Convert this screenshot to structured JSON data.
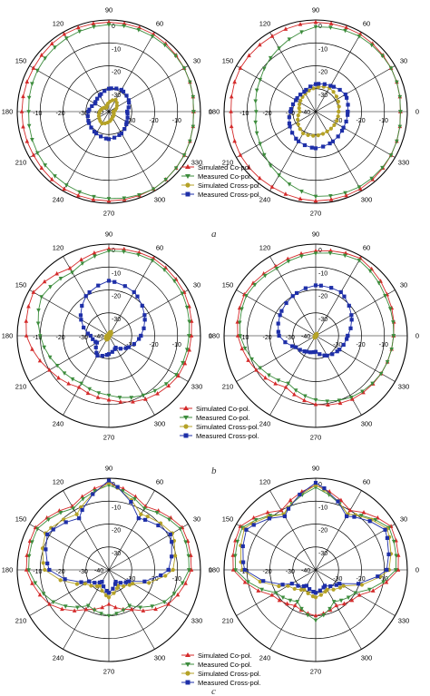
{
  "figure": {
    "panel_labels": [
      "a",
      "b",
      "c"
    ],
    "colors": {
      "sim_co": "#d42a2a",
      "meas_co": "#3c8c3c",
      "sim_cross": "#b5a227",
      "meas_cross": "#1e2fa8",
      "grid": "#000000"
    },
    "legend_entries": [
      {
        "label": "Simulated Co-pol.",
        "marker": "triangle-up",
        "color": "#d42a2a"
      },
      {
        "label": "Measured Co-pol.",
        "marker": "triangle-down",
        "color": "#3c8c3c"
      },
      {
        "label": "Simulated Cross-pol.",
        "marker": "circle",
        "color": "#b5a227"
      },
      {
        "label": "Measured Cross-pol.",
        "marker": "square",
        "color": "#1e2fa8"
      }
    ]
  },
  "chart_data": [
    {
      "type": "polar",
      "panel": "a",
      "position": "left",
      "angle_labels": [
        "90",
        "60",
        "30",
        "0",
        "330",
        "300",
        "270",
        "240",
        "210",
        "180",
        "150",
        "120"
      ],
      "radial_labels": [
        "0",
        "-10",
        "-20",
        "-30",
        "-40",
        "-30",
        "-20",
        "-10"
      ],
      "rlim": [
        -40,
        0
      ],
      "series": [
        {
          "name": "Simulated Co-pol.",
          "angles_deg": [
            0,
            30,
            60,
            90,
            120,
            150,
            180,
            210,
            240,
            270,
            300,
            330,
            360
          ],
          "values_db": [
            -3,
            -2,
            -1,
            -1,
            -1,
            -2,
            -2,
            -2,
            -1,
            -1,
            -1,
            -2,
            -3
          ]
        },
        {
          "name": "Measured Co-pol.",
          "angles_deg": [
            0,
            30,
            60,
            90,
            120,
            150,
            180,
            210,
            240,
            270,
            300,
            330,
            360
          ],
          "values_db": [
            -3,
            -2,
            -2,
            -2,
            -3,
            -4,
            -5,
            -4,
            -3,
            -2,
            -1,
            -2,
            -3
          ]
        },
        {
          "name": "Simulated Cross-pol.",
          "angles_deg": [
            0,
            60,
            120,
            180,
            240,
            300,
            360
          ],
          "values_db": [
            -38,
            -34,
            -38,
            -36,
            -34,
            -37,
            -38
          ]
        },
        {
          "name": "Measured Cross-pol.",
          "angles_deg": [
            0,
            30,
            60,
            90,
            120,
            150,
            180,
            210,
            240,
            270,
            300,
            330,
            360
          ],
          "values_db": [
            -32,
            -30,
            -29,
            -30,
            -32,
            -33,
            -31,
            -30,
            -29,
            -28,
            -29,
            -31,
            -32
          ]
        }
      ]
    },
    {
      "type": "polar",
      "panel": "a",
      "position": "right",
      "angle_labels": [
        "90",
        "60",
        "30",
        "0",
        "330",
        "300",
        "270",
        "240",
        "210",
        "180",
        "150",
        "120"
      ],
      "radial_labels": [
        "0",
        "-10",
        "-20",
        "-30",
        "-40",
        "-30",
        "-20",
        "-10"
      ],
      "rlim": [
        -40,
        0
      ],
      "series": [
        {
          "name": "Simulated Co-pol.",
          "angles_deg": [
            0,
            30,
            60,
            90,
            120,
            150,
            180,
            210,
            240,
            270,
            300,
            330,
            360
          ],
          "values_db": [
            -3,
            -2,
            -1,
            -1,
            -2,
            -2,
            -3,
            -2,
            -2,
            -1,
            -1,
            -2,
            -3
          ]
        },
        {
          "name": "Measured Co-pol.",
          "angles_deg": [
            0,
            30,
            60,
            90,
            120,
            150,
            180,
            210,
            240,
            270,
            300,
            330,
            360
          ],
          "values_db": [
            -3,
            -2,
            -2,
            -3,
            -8,
            -12,
            -14,
            -12,
            -8,
            -3,
            -2,
            -2,
            -3
          ]
        },
        {
          "name": "Simulated Cross-pol.",
          "angles_deg": [
            0,
            60,
            120,
            180,
            240,
            300,
            360
          ],
          "values_db": [
            -30,
            -28,
            -31,
            -33,
            -29,
            -30,
            -30
          ]
        },
        {
          "name": "Measured Cross-pol.",
          "angles_deg": [
            0,
            30,
            60,
            90,
            120,
            150,
            180,
            210,
            240,
            270,
            300,
            330,
            360
          ],
          "values_db": [
            -26,
            -25,
            -27,
            -28,
            -30,
            -30,
            -29,
            -27,
            -25,
            -24,
            -25,
            -26,
            -26
          ]
        }
      ]
    },
    {
      "type": "polar",
      "panel": "b",
      "position": "left",
      "angle_labels": [
        "90",
        "60",
        "30",
        "0",
        "330",
        "300",
        "270",
        "240",
        "210",
        "180",
        "150",
        "120"
      ],
      "radial_labels": [
        "0",
        "-10",
        "-20",
        "-30",
        "-40",
        "-30",
        "-20",
        "-10"
      ],
      "rlim": [
        -40,
        0
      ],
      "series": [
        {
          "name": "Simulated Co-pol.",
          "angles_deg": [
            0,
            30,
            60,
            90,
            120,
            150,
            180,
            210,
            240,
            270,
            300,
            330,
            360
          ],
          "values_db": [
            -4,
            -2,
            -1,
            -2,
            -6,
            -2,
            -4,
            -10,
            -14,
            -12,
            -8,
            -5,
            -4
          ]
        },
        {
          "name": "Measured Co-pol.",
          "angles_deg": [
            0,
            30,
            60,
            90,
            120,
            150,
            180,
            210,
            240,
            270,
            300,
            330,
            360
          ],
          "values_db": [
            -5,
            -3,
            -2,
            -3,
            -8,
            -6,
            -10,
            -14,
            -16,
            -14,
            -10,
            -6,
            -5
          ]
        },
        {
          "name": "Simulated Cross-pol.",
          "angles_deg": [
            0,
            60,
            120,
            180,
            240,
            300,
            360
          ],
          "values_db": [
            -40,
            -38,
            -40,
            -39,
            -38,
            -40,
            -40
          ]
        },
        {
          "name": "Measured Cross-pol.",
          "angles_deg": [
            0,
            30,
            60,
            90,
            120,
            150,
            180,
            210,
            240,
            270,
            300,
            330,
            360
          ],
          "values_db": [
            -26,
            -22,
            -18,
            -16,
            -20,
            -26,
            -32,
            -34,
            -30,
            -32,
            -34,
            -30,
            -26
          ]
        }
      ]
    },
    {
      "type": "polar",
      "panel": "b",
      "position": "right",
      "angle_labels": [
        "90",
        "60",
        "30",
        "0",
        "330",
        "300",
        "270",
        "240",
        "210",
        "180",
        "150",
        "120"
      ],
      "radial_labels": [
        "0",
        "-10",
        "-20",
        "-30",
        "-40",
        "-30",
        "-20",
        "-10"
      ],
      "rlim": [
        -40,
        0
      ],
      "series": [
        {
          "name": "Simulated Co-pol.",
          "angles_deg": [
            0,
            30,
            60,
            90,
            120,
            150,
            180,
            210,
            240,
            270,
            300,
            330,
            360
          ],
          "values_db": [
            -6,
            -4,
            -1,
            -3,
            -5,
            -4,
            -6,
            -10,
            -14,
            -10,
            -8,
            -7,
            -6
          ]
        },
        {
          "name": "Measured Co-pol.",
          "angles_deg": [
            0,
            30,
            60,
            90,
            120,
            150,
            180,
            210,
            240,
            270,
            300,
            330,
            360
          ],
          "values_db": [
            -6,
            -5,
            -2,
            -4,
            -6,
            -5,
            -7,
            -12,
            -16,
            -12,
            -9,
            -7,
            -6
          ]
        },
        {
          "name": "Simulated Cross-pol.",
          "angles_deg": [
            0,
            60,
            120,
            180,
            240,
            300,
            360
          ],
          "values_db": [
            -40,
            -39,
            -40,
            -40,
            -39,
            -40,
            -40
          ]
        },
        {
          "name": "Measured Cross-pol.",
          "angles_deg": [
            0,
            30,
            60,
            90,
            120,
            150,
            180,
            210,
            240,
            270,
            300,
            330,
            360
          ],
          "values_db": [
            -26,
            -22,
            -18,
            -18,
            -20,
            -22,
            -24,
            -30,
            -32,
            -33,
            -30,
            -28,
            -26
          ]
        }
      ]
    },
    {
      "type": "polar",
      "panel": "c",
      "position": "left",
      "angle_labels": [
        "90",
        "60",
        "30",
        "0",
        "330",
        "300",
        "270",
        "240",
        "210",
        "180",
        "150",
        "120"
      ],
      "radial_labels": [
        "0",
        "-10",
        "-20",
        "-30",
        "-40",
        "-30",
        "-20",
        "-10"
      ],
      "rlim": [
        -40,
        0
      ],
      "series": [
        {
          "name": "Simulated Co-pol.",
          "angles_deg": [
            0,
            30,
            60,
            90,
            120,
            150,
            180,
            210,
            240,
            270,
            300,
            330,
            360
          ],
          "values_db": [
            -4,
            -3,
            -8,
            -2,
            -8,
            -3,
            -4,
            -10,
            -20,
            -25,
            -20,
            -10,
            -4
          ]
        },
        {
          "name": "Measured Co-pol.",
          "angles_deg": [
            0,
            30,
            60,
            90,
            120,
            150,
            180,
            210,
            240,
            270,
            300,
            330,
            360
          ],
          "values_db": [
            -5,
            -4,
            -9,
            -3,
            -9,
            -4,
            -5,
            -12,
            -22,
            -20,
            -22,
            -12,
            -5
          ]
        },
        {
          "name": "Simulated Cross-pol.",
          "angles_deg": [
            0,
            30,
            60,
            90,
            120,
            150,
            180,
            210,
            240,
            270,
            300,
            330,
            360
          ],
          "values_db": [
            -12,
            -8,
            -12,
            -2,
            -12,
            -8,
            -12,
            -28,
            -32,
            -28,
            -32,
            -28,
            -12
          ]
        },
        {
          "name": "Measured Cross-pol.",
          "angles_deg": [
            0,
            30,
            60,
            90,
            120,
            150,
            180,
            210,
            240,
            270,
            300,
            330,
            360
          ],
          "values_db": [
            -14,
            -9,
            -14,
            -1,
            -14,
            -9,
            -14,
            -30,
            -34,
            -30,
            -34,
            -30,
            -14
          ]
        }
      ]
    },
    {
      "type": "polar",
      "panel": "c",
      "position": "right",
      "angle_labels": [
        "90",
        "60",
        "30",
        "0",
        "330",
        "300",
        "270",
        "240",
        "210",
        "180",
        "150",
        "120"
      ],
      "radial_labels": [
        "0",
        "-10",
        "-20",
        "-30",
        "-40",
        "-30",
        "-20",
        "-10"
      ],
      "rlim": [
        -40,
        0
      ],
      "series": [
        {
          "name": "Simulated Co-pol.",
          "angles_deg": [
            0,
            30,
            60,
            90,
            120,
            150,
            180,
            210,
            240,
            270,
            300,
            330,
            360
          ],
          "values_db": [
            -4,
            -2,
            -10,
            -3,
            -10,
            -2,
            -4,
            -18,
            -22,
            -20,
            -22,
            -18,
            -4
          ]
        },
        {
          "name": "Measured Co-pol.",
          "angles_deg": [
            0,
            30,
            60,
            90,
            120,
            150,
            180,
            210,
            240,
            270,
            300,
            330,
            360
          ],
          "values_db": [
            -5,
            -3,
            -12,
            -4,
            -12,
            -3,
            -5,
            -20,
            -24,
            -18,
            -24,
            -20,
            -5
          ]
        },
        {
          "name": "Simulated Cross-pol.",
          "angles_deg": [
            0,
            30,
            60,
            90,
            120,
            150,
            180,
            210,
            240,
            270,
            300,
            330,
            360
          ],
          "values_db": [
            -8,
            -4,
            -12,
            -3,
            -12,
            -4,
            -8,
            -26,
            -30,
            -28,
            -30,
            -26,
            -8
          ]
        },
        {
          "name": "Measured Cross-pol.",
          "angles_deg": [
            0,
            30,
            60,
            90,
            120,
            150,
            180,
            210,
            240,
            270,
            300,
            330,
            360
          ],
          "values_db": [
            -9,
            -5,
            -13,
            -2,
            -13,
            -5,
            -9,
            -28,
            -32,
            -30,
            -32,
            -28,
            -9
          ]
        }
      ]
    }
  ]
}
